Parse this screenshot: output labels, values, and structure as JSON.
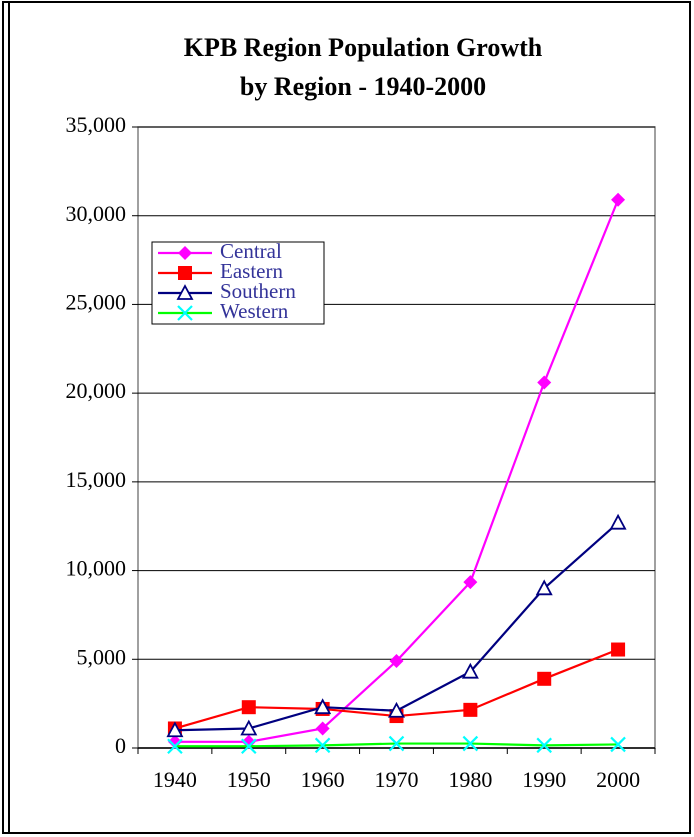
{
  "chart_data": {
    "type": "line",
    "title": [
      "KPB Region Population Growth",
      "by Region - 1940-2000"
    ],
    "categories": [
      "1940",
      "1950",
      "1960",
      "1970",
      "1980",
      "1990",
      "2000"
    ],
    "series": [
      {
        "name": "Central",
        "color": "#ff00ff",
        "marker": "diamond",
        "values": [
          350,
          350,
          1100,
          4900,
          9350,
          20600,
          30900
        ]
      },
      {
        "name": "Eastern",
        "color": "#ff0000",
        "marker": "square",
        "values": [
          1100,
          2300,
          2200,
          1800,
          2150,
          3900,
          5550
        ]
      },
      {
        "name": "Southern",
        "color": "#000080",
        "marker": "triangle",
        "values": [
          1000,
          1100,
          2300,
          2100,
          4300,
          9000,
          12700
        ]
      },
      {
        "name": "Western",
        "color": "#00ff00",
        "marker": "x",
        "marker_color": "#00ffff",
        "values": [
          100,
          100,
          150,
          250,
          250,
          150,
          200
        ]
      }
    ],
    "ylim": [
      0,
      35000
    ],
    "yticks": [
      0,
      {
        "value": 5000,
        "label": "5,000"
      },
      {
        "value": 10000,
        "label": "10,000"
      },
      {
        "value": 15000,
        "label": "15,000"
      },
      {
        "value": 20000,
        "label": "20,000"
      },
      {
        "value": 25000,
        "label": "25,000"
      },
      {
        "value": 30000,
        "label": "30,000"
      },
      {
        "value": 35000,
        "label": "35,000"
      }
    ],
    "grid": true,
    "legend": "upper left"
  }
}
